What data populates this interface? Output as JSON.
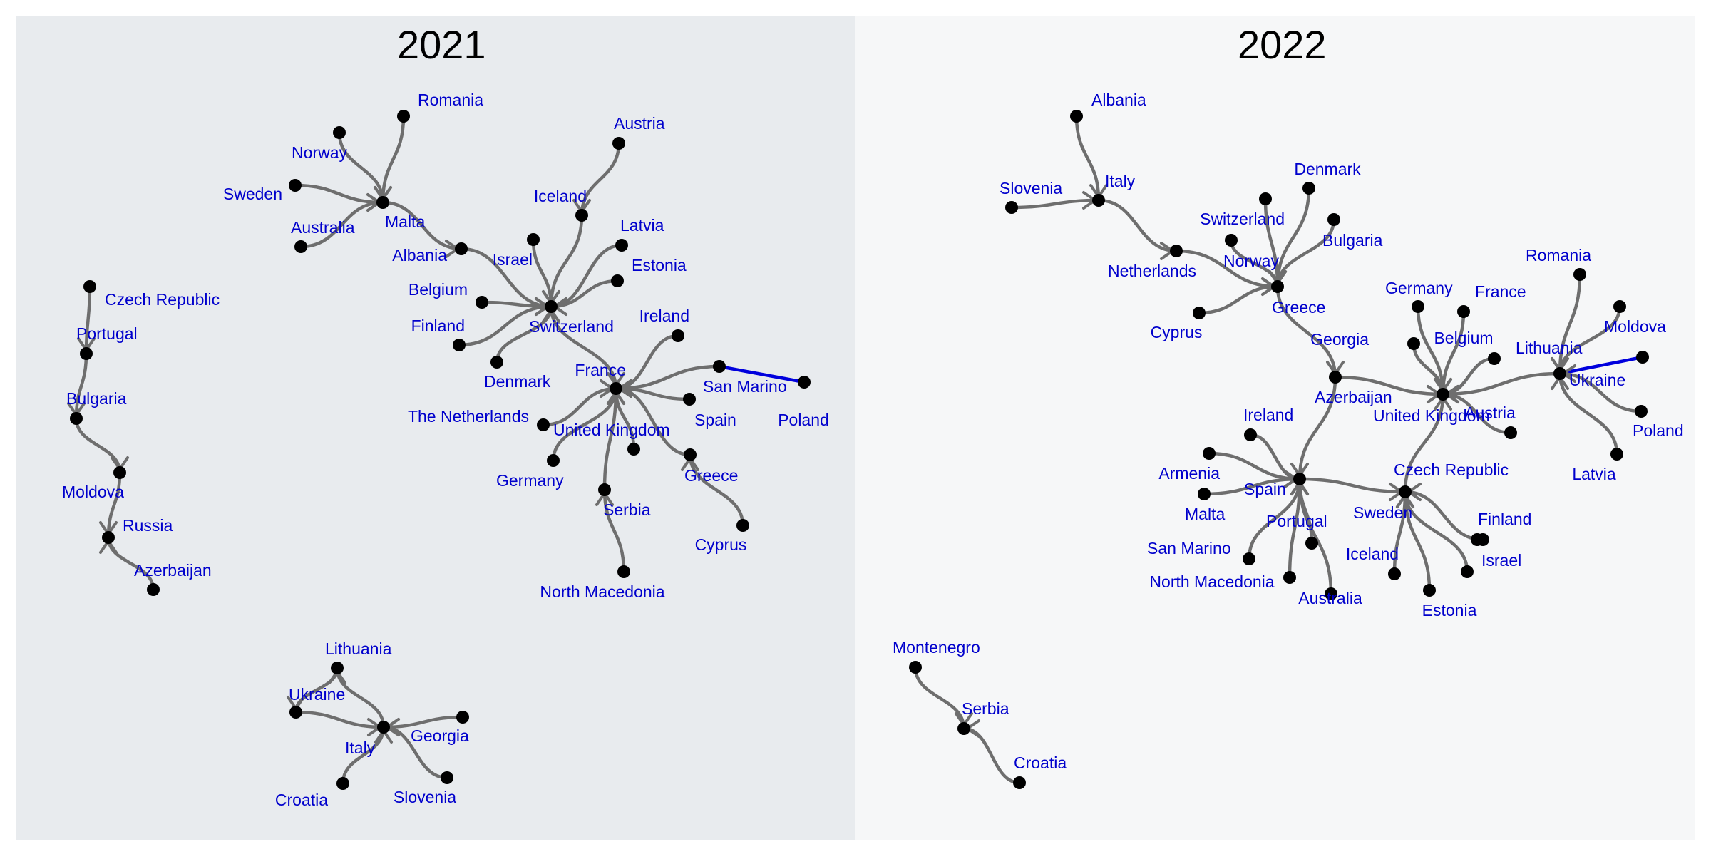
{
  "panels": [
    {
      "year": "2021",
      "background": "#e8ebee",
      "nodes": [
        {
          "id": "Romania",
          "label": "Romania"
        },
        {
          "id": "Norway",
          "label": "Norway"
        },
        {
          "id": "Sweden",
          "label": "Sweden"
        },
        {
          "id": "Australia",
          "label": "Australia"
        },
        {
          "id": "Malta",
          "label": "Malta"
        },
        {
          "id": "Albania",
          "label": "Albania"
        },
        {
          "id": "Austria",
          "label": "Austria"
        },
        {
          "id": "Iceland",
          "label": "Iceland"
        },
        {
          "id": "Latvia",
          "label": "Latvia"
        },
        {
          "id": "Israel",
          "label": "Israel"
        },
        {
          "id": "Estonia",
          "label": "Estonia"
        },
        {
          "id": "Belgium",
          "label": "Belgium"
        },
        {
          "id": "Finland",
          "label": "Finland"
        },
        {
          "id": "Switzerland",
          "label": "Switzerland"
        },
        {
          "id": "Denmark",
          "label": "Denmark"
        },
        {
          "id": "Ireland",
          "label": "Ireland"
        },
        {
          "id": "France",
          "label": "France"
        },
        {
          "id": "San Marino",
          "label": "San Marino"
        },
        {
          "id": "Poland",
          "label": "Poland"
        },
        {
          "id": "Spain",
          "label": "Spain"
        },
        {
          "id": "The Netherlands",
          "label": "The Netherlands"
        },
        {
          "id": "United Kingdom",
          "label": "United Kingdom"
        },
        {
          "id": "Germany",
          "label": "Germany"
        },
        {
          "id": "Greece",
          "label": "Greece"
        },
        {
          "id": "Serbia",
          "label": "Serbia"
        },
        {
          "id": "Cyprus",
          "label": "Cyprus"
        },
        {
          "id": "North Macedonia",
          "label": "North Macedonia"
        },
        {
          "id": "Czech Republic",
          "label": "Czech Republic"
        },
        {
          "id": "Portugal",
          "label": "Portugal"
        },
        {
          "id": "Bulgaria",
          "label": "Bulgaria"
        },
        {
          "id": "Moldova",
          "label": "Moldova"
        },
        {
          "id": "Russia",
          "label": "Russia"
        },
        {
          "id": "Azerbaijan",
          "label": "Azerbaijan"
        },
        {
          "id": "Lithuania",
          "label": "Lithuania"
        },
        {
          "id": "Ukraine",
          "label": "Ukraine"
        },
        {
          "id": "Italy",
          "label": "Italy"
        },
        {
          "id": "Georgia",
          "label": "Georgia"
        },
        {
          "id": "Croatia",
          "label": "Croatia"
        },
        {
          "id": "Slovenia",
          "label": "Slovenia"
        }
      ],
      "edges": [
        {
          "from": "Romania",
          "to": "Malta"
        },
        {
          "from": "Norway",
          "to": "Malta"
        },
        {
          "from": "Sweden",
          "to": "Malta"
        },
        {
          "from": "Australia",
          "to": "Malta"
        },
        {
          "from": "Malta",
          "to": "Albania"
        },
        {
          "from": "Albania",
          "to": "Switzerland"
        },
        {
          "from": "Austria",
          "to": "Iceland"
        },
        {
          "from": "Iceland",
          "to": "Switzerland"
        },
        {
          "from": "Israel",
          "to": "Switzerland"
        },
        {
          "from": "Latvia",
          "to": "Switzerland"
        },
        {
          "from": "Estonia",
          "to": "Switzerland"
        },
        {
          "from": "Belgium",
          "to": "Switzerland"
        },
        {
          "from": "Finland",
          "to": "Switzerland"
        },
        {
          "from": "Denmark",
          "to": "Switzerland"
        },
        {
          "from": "Switzerland",
          "to": "France"
        },
        {
          "from": "Ireland",
          "to": "France"
        },
        {
          "from": "San Marino",
          "to": "France"
        },
        {
          "from": "Spain",
          "to": "France"
        },
        {
          "from": "The Netherlands",
          "to": "France"
        },
        {
          "from": "United Kingdom",
          "to": "France"
        },
        {
          "from": "Germany",
          "to": "France"
        },
        {
          "from": "Greece",
          "to": "France"
        },
        {
          "from": "Serbia",
          "to": "France"
        },
        {
          "from": "Poland",
          "to": "San Marino"
        },
        {
          "from": "Cyprus",
          "to": "Greece"
        },
        {
          "from": "North Macedonia",
          "to": "Serbia"
        },
        {
          "from": "Czech Republic",
          "to": "Portugal"
        },
        {
          "from": "Portugal",
          "to": "Bulgaria"
        },
        {
          "from": "Bulgaria",
          "to": "Moldova"
        },
        {
          "from": "Moldova",
          "to": "Russia"
        },
        {
          "from": "Azerbaijan",
          "to": "Russia"
        },
        {
          "from": "Italy",
          "to": "Lithuania"
        },
        {
          "from": "Lithuania",
          "to": "Ukraine"
        },
        {
          "from": "Ukraine",
          "to": "Italy"
        },
        {
          "from": "Georgia",
          "to": "Italy"
        },
        {
          "from": "Croatia",
          "to": "Italy"
        },
        {
          "from": "Slovenia",
          "to": "Italy"
        }
      ],
      "highlighted_edges": [
        {
          "from": "Poland",
          "to": "San Marino"
        }
      ]
    },
    {
      "year": "2022",
      "background": "#f6f7f8",
      "nodes": [
        {
          "id": "Albania",
          "label": "Albania"
        },
        {
          "id": "Slovenia",
          "label": "Slovenia"
        },
        {
          "id": "Italy",
          "label": "Italy"
        },
        {
          "id": "Netherlands",
          "label": "Netherlands"
        },
        {
          "id": "Switzerland",
          "label": "Switzerland"
        },
        {
          "id": "Denmark",
          "label": "Denmark"
        },
        {
          "id": "Bulgaria",
          "label": "Bulgaria"
        },
        {
          "id": "Norway",
          "label": "Norway"
        },
        {
          "id": "Cyprus",
          "label": "Cyprus"
        },
        {
          "id": "Greece",
          "label": "Greece"
        },
        {
          "id": "Germany",
          "label": "Germany"
        },
        {
          "id": "France",
          "label": "France"
        },
        {
          "id": "Romania",
          "label": "Romania"
        },
        {
          "id": "Moldova",
          "label": "Moldova"
        },
        {
          "id": "Georgia",
          "label": "Georgia"
        },
        {
          "id": "Belgium",
          "label": "Belgium"
        },
        {
          "id": "Lithuania",
          "label": "Lithuania"
        },
        {
          "id": "Azerbaijan",
          "label": "Azerbaijan"
        },
        {
          "id": "Ukraine",
          "label": "Ukraine"
        },
        {
          "id": "United Kingdom",
          "label": "United Kingdom"
        },
        {
          "id": "Austria",
          "label": "Austria"
        },
        {
          "id": "Poland",
          "label": "Poland"
        },
        {
          "id": "Latvia",
          "label": "Latvia"
        },
        {
          "id": "Ireland",
          "label": "Ireland"
        },
        {
          "id": "Armenia",
          "label": "Armenia"
        },
        {
          "id": "Spain",
          "label": "Spain"
        },
        {
          "id": "Czech Republic",
          "label": "Czech Republic"
        },
        {
          "id": "Malta",
          "label": "Malta"
        },
        {
          "id": "Portugal",
          "label": "Portugal"
        },
        {
          "id": "Sweden",
          "label": "Sweden"
        },
        {
          "id": "Finland",
          "label": "Finland"
        },
        {
          "id": "San Marino",
          "label": "San Marino"
        },
        {
          "id": "Israel",
          "label": "Israel"
        },
        {
          "id": "Iceland",
          "label": "Iceland"
        },
        {
          "id": "North Macedonia",
          "label": "North Macedonia"
        },
        {
          "id": "Australia",
          "label": "Australia"
        },
        {
          "id": "Estonia",
          "label": "Estonia"
        },
        {
          "id": "Montenegro",
          "label": "Montenegro"
        },
        {
          "id": "Serbia",
          "label": "Serbia"
        },
        {
          "id": "Croatia",
          "label": "Croatia"
        }
      ],
      "edges": [
        {
          "from": "Albania",
          "to": "Italy"
        },
        {
          "from": "Slovenia",
          "to": "Italy"
        },
        {
          "from": "Italy",
          "to": "Netherlands"
        },
        {
          "from": "Netherlands",
          "to": "Greece"
        },
        {
          "from": "Switzerland",
          "to": "Greece"
        },
        {
          "from": "Denmark",
          "to": "Greece"
        },
        {
          "from": "Bulgaria",
          "to": "Greece"
        },
        {
          "from": "Norway",
          "to": "Greece"
        },
        {
          "from": "Cyprus",
          "to": "Greece"
        },
        {
          "from": "Greece",
          "to": "Azerbaijan"
        },
        {
          "from": "Azerbaijan",
          "to": "United Kingdom"
        },
        {
          "from": "Georgia",
          "to": "United Kingdom"
        },
        {
          "from": "Germany",
          "to": "United Kingdom"
        },
        {
          "from": "France",
          "to": "United Kingdom"
        },
        {
          "from": "Belgium",
          "to": "United Kingdom"
        },
        {
          "from": "Lithuania",
          "to": "United Kingdom"
        },
        {
          "from": "Austria",
          "to": "United Kingdom"
        },
        {
          "from": "Czech Republic",
          "to": "United Kingdom"
        },
        {
          "from": "Romania",
          "to": "Lithuania"
        },
        {
          "from": "Moldova",
          "to": "Lithuania"
        },
        {
          "from": "Ukraine",
          "to": "Lithuania"
        },
        {
          "from": "Poland",
          "to": "Lithuania"
        },
        {
          "from": "Latvia",
          "to": "Lithuania"
        },
        {
          "from": "Azerbaijan",
          "to": "Spain"
        },
        {
          "from": "Ireland",
          "to": "Spain"
        },
        {
          "from": "Armenia",
          "to": "Spain"
        },
        {
          "from": "Malta",
          "to": "Spain"
        },
        {
          "from": "San Marino",
          "to": "Spain"
        },
        {
          "from": "North Macedonia",
          "to": "Spain"
        },
        {
          "from": "Portugal",
          "to": "Spain"
        },
        {
          "from": "Spain",
          "to": "Czech Republic"
        },
        {
          "from": "Finland",
          "to": "Czech Republic"
        },
        {
          "from": "Israel",
          "to": "Czech Republic"
        },
        {
          "from": "Estonia",
          "to": "Czech Republic"
        },
        {
          "from": "Iceland",
          "to": "Czech Republic"
        },
        {
          "from": "Australia",
          "to": "Spain"
        },
        {
          "from": "Montenegro",
          "to": "Serbia"
        },
        {
          "from": "Croatia",
          "to": "Serbia"
        }
      ],
      "highlighted_edges": [
        {
          "from": "Ukraine",
          "to": "Lithuania"
        }
      ]
    }
  ]
}
